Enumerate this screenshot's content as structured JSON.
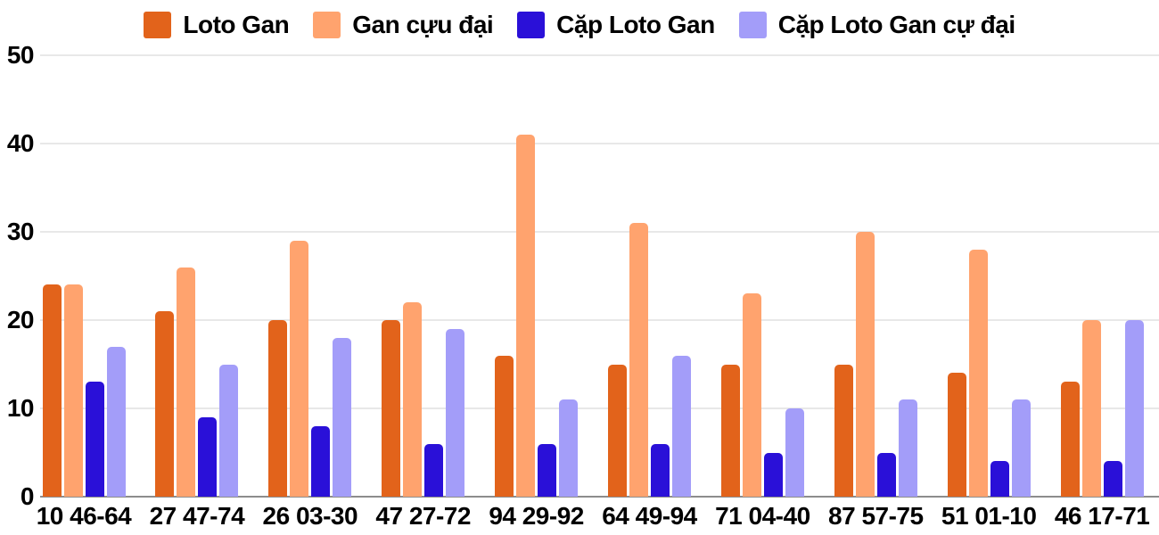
{
  "chart_data": {
    "type": "bar",
    "title": "",
    "xlabel": "",
    "ylabel": "",
    "ylim": [
      0,
      50
    ],
    "yticks": [
      0,
      10,
      20,
      30,
      40,
      50
    ],
    "grid": true,
    "legend_position": "top-center",
    "categories": [
      "10 46-64",
      "27 47-74",
      "26 03-30",
      "47 27-72",
      "94 29-92",
      "64 49-94",
      "71 04-40",
      "87 57-75",
      "51 01-10",
      "46 17-71"
    ],
    "series": [
      {
        "name": "Loto Gan",
        "color": "#e2631b",
        "values": [
          24,
          21,
          20,
          20,
          16,
          15,
          15,
          15,
          14,
          13
        ]
      },
      {
        "name": "Gan cựu đại",
        "color": "#ffa36e",
        "values": [
          24,
          26,
          29,
          22,
          41,
          31,
          23,
          30,
          28,
          20
        ]
      },
      {
        "name": "Cặp Loto Gan",
        "color": "#2a10d8",
        "values": [
          13,
          9,
          8,
          6,
          6,
          6,
          5,
          5,
          4,
          4
        ]
      },
      {
        "name": "Cặp Loto Gan cự đại",
        "color": "#a39df9",
        "values": [
          17,
          15,
          18,
          19,
          11,
          16,
          10,
          11,
          11,
          20
        ]
      }
    ],
    "colors": {
      "gridline": "#e8e8e8",
      "axis_baseline": "#8d8d8d",
      "text": "#000000",
      "background": "#ffffff"
    }
  }
}
